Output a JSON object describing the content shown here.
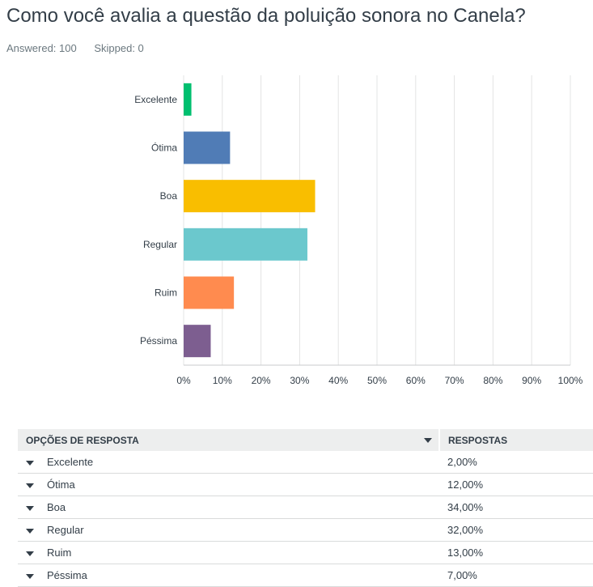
{
  "header": {
    "title": "Como você avalia a questão da poluição sonora no Canela?",
    "answered": "Answered: 100",
    "skipped": "Skipped: 0"
  },
  "chart_data": {
    "type": "bar",
    "orientation": "horizontal",
    "categories": [
      "Excelente",
      "Ótima",
      "Boa",
      "Regular",
      "Ruim",
      "Péssima"
    ],
    "values": [
      2,
      12,
      34,
      32,
      13,
      7
    ],
    "colors": [
      "#00bf6f",
      "#507cb6",
      "#f9be00",
      "#6bc8cd",
      "#ff8b4f",
      "#7d5e90"
    ],
    "xlim": [
      0,
      100
    ],
    "xticks": [
      "0%",
      "10%",
      "20%",
      "30%",
      "40%",
      "50%",
      "60%",
      "70%",
      "80%",
      "90%",
      "100%"
    ],
    "grid": true
  },
  "table": {
    "headers": [
      "OPÇÕES DE RESPOSTA",
      "RESPOSTAS"
    ],
    "rows": [
      {
        "label": "Excelente",
        "value": "2,00%"
      },
      {
        "label": "Ótima",
        "value": "12,00%"
      },
      {
        "label": "Boa",
        "value": "34,00%"
      },
      {
        "label": "Regular",
        "value": "32,00%"
      },
      {
        "label": "Ruim",
        "value": "13,00%"
      },
      {
        "label": "Péssima",
        "value": "7,00%"
      }
    ]
  }
}
